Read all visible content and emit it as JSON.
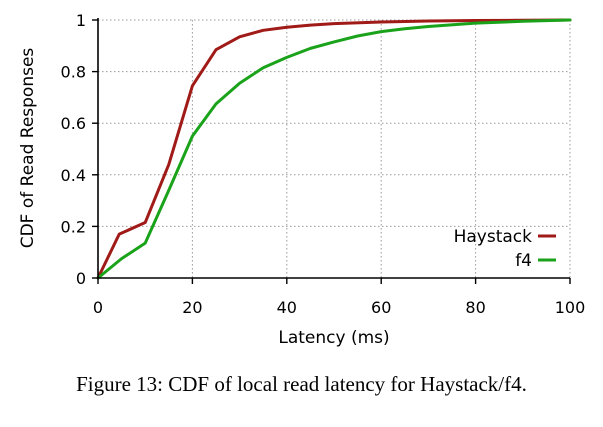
{
  "colors": {
    "haystack": "#a01a17",
    "f4": "#1aa31a",
    "grid": "#9a9a9a",
    "axis": "#000000"
  },
  "caption": "Figure 13: CDF of local read latency for Haystack/f4.",
  "chart_data": {
    "type": "line",
    "xlabel": "Latency (ms)",
    "ylabel": "CDF of Read Responses",
    "xlim": [
      0,
      100
    ],
    "ylim": [
      0,
      1
    ],
    "xticks": [
      0,
      20,
      40,
      60,
      80,
      100
    ],
    "xtick_labels": [
      "0",
      "20",
      "40",
      "60",
      "80",
      "100"
    ],
    "yticks": [
      0,
      0.2,
      0.4,
      0.6,
      0.8,
      1
    ],
    "ytick_labels": [
      "0",
      "0.2",
      "0.4",
      "0.6",
      "0.8",
      "1"
    ],
    "grid": true,
    "legend_position": "bottom-right",
    "series": [
      {
        "name": "Haystack",
        "color": "#a01a17",
        "x": [
          0,
          4.5,
          10,
          15,
          20,
          25,
          30,
          35,
          40,
          45,
          50,
          60,
          70,
          80,
          90,
          100
        ],
        "y": [
          0,
          0.17,
          0.215,
          0.44,
          0.745,
          0.885,
          0.935,
          0.96,
          0.972,
          0.98,
          0.986,
          0.992,
          0.996,
          0.998,
          0.999,
          1.0
        ]
      },
      {
        "name": "f4",
        "color": "#1aa31a",
        "x": [
          0,
          5,
          10,
          15,
          20,
          25,
          30,
          35,
          40,
          45,
          50,
          55,
          60,
          65,
          70,
          80,
          90,
          100
        ],
        "y": [
          0,
          0.075,
          0.135,
          0.34,
          0.55,
          0.675,
          0.755,
          0.815,
          0.855,
          0.89,
          0.915,
          0.938,
          0.955,
          0.966,
          0.975,
          0.988,
          0.995,
          1.0
        ]
      }
    ]
  }
}
